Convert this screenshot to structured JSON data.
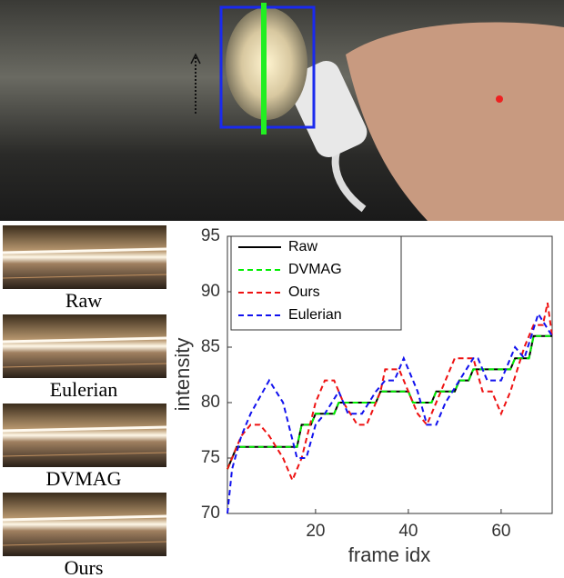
{
  "strip_labels": [
    "Raw",
    "Eulerian",
    "DVMAG",
    "Ours"
  ],
  "chart_data": {
    "type": "line",
    "xlabel": "frame idx",
    "ylabel": "intensity",
    "xlim": [
      1,
      71
    ],
    "ylim": [
      70,
      95
    ],
    "xticks": [
      20,
      40,
      60
    ],
    "yticks": [
      70,
      75,
      80,
      85,
      90,
      95
    ],
    "grid": false,
    "legend": "upper left",
    "series": [
      {
        "name": "Raw",
        "color": "#000000",
        "dash": false,
        "x": [
          1,
          3,
          16,
          17,
          19,
          20,
          24,
          25,
          33,
          34,
          40,
          41,
          45,
          46,
          50,
          51,
          53,
          54,
          62,
          63,
          66,
          67,
          71
        ],
        "values": [
          74,
          76,
          76,
          78,
          78,
          79,
          79,
          80,
          80,
          81,
          81,
          80,
          80,
          81,
          81,
          82,
          82,
          83,
          83,
          84,
          84,
          86,
          86
        ]
      },
      {
        "name": "DVMAG",
        "color": "#00ee00",
        "dash": true,
        "x": [
          1,
          3,
          16,
          17,
          19,
          20,
          24,
          25,
          33,
          34,
          40,
          41,
          45,
          46,
          50,
          51,
          53,
          54,
          62,
          63,
          66,
          67,
          71
        ],
        "values": [
          74,
          76,
          76,
          78,
          78,
          79,
          79,
          80,
          80,
          81,
          81,
          80,
          80,
          81,
          81,
          82,
          82,
          83,
          83,
          84,
          84,
          86,
          86
        ]
      },
      {
        "name": "Ours",
        "color": "#ee1111",
        "dash": true,
        "x": [
          1,
          4,
          6,
          8,
          10,
          13,
          15,
          17,
          20,
          22,
          24,
          26,
          29,
          31,
          34,
          35,
          38,
          40,
          42,
          44,
          48,
          50,
          54,
          56,
          58,
          60,
          62,
          65,
          67,
          69,
          70,
          71
        ],
        "values": [
          74,
          77,
          78,
          78,
          77,
          75,
          73,
          75,
          80,
          82,
          82,
          80,
          78,
          78,
          81,
          83,
          83,
          81,
          79,
          78,
          82,
          84,
          84,
          81,
          81,
          79,
          81,
          85,
          87,
          87,
          89,
          86
        ]
      },
      {
        "name": "Eulerian",
        "color": "#1111ee",
        "dash": true,
        "x": [
          1,
          2,
          4,
          6,
          10,
          13,
          16,
          18,
          20,
          22,
          25,
          27,
          30,
          33,
          35,
          37,
          39,
          42,
          44,
          46,
          48,
          51,
          54,
          55,
          57,
          60,
          63,
          65,
          68,
          71
        ],
        "values": [
          70,
          74,
          77,
          79,
          82,
          80,
          75,
          75,
          78,
          79,
          81,
          79,
          79,
          81,
          82,
          82,
          84,
          81,
          78,
          78,
          80,
          82,
          84,
          84,
          82,
          82,
          85,
          84,
          88,
          86
        ]
      }
    ]
  }
}
